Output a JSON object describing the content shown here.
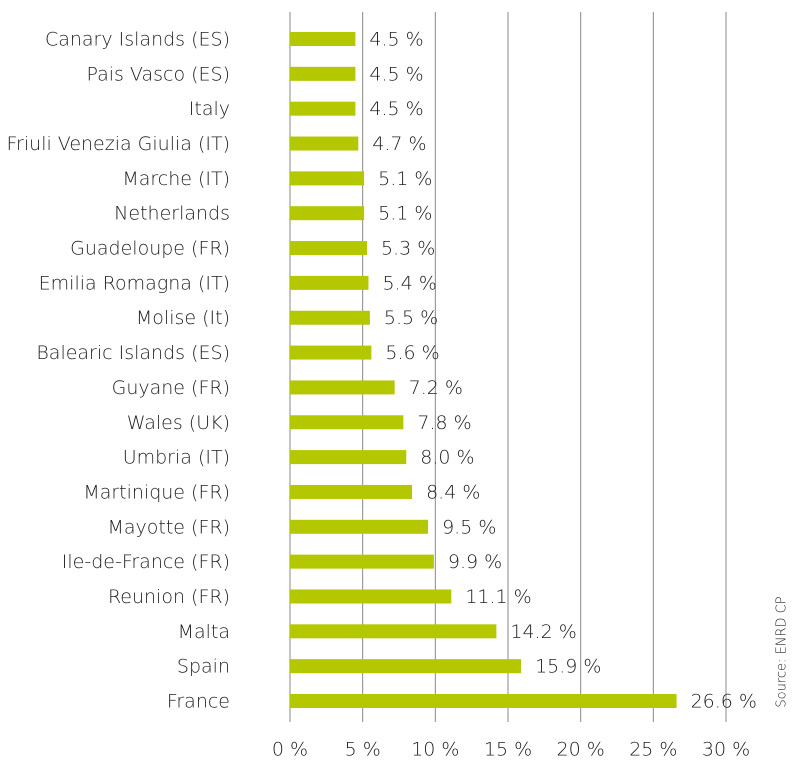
{
  "chart_data": {
    "type": "bar",
    "orientation": "horizontal",
    "categories": [
      "Canary Islands (ES)",
      "Pais Vasco (ES)",
      "Italy",
      "Friuli Venezia Giulia (IT)",
      "Marche (IT)",
      "Netherlands",
      "Guadeloupe (FR)",
      "Emilia Romagna (IT)",
      "Molise (It)",
      "Balearic Islands (ES)",
      "Guyane (FR)",
      "Wales (UK)",
      "Umbria (IT)",
      "Martinique (FR)",
      "Mayotte (FR)",
      "Ile-de-France (FR)",
      "Reunion (FR)",
      "Malta",
      "Spain",
      "France"
    ],
    "values": [
      4.5,
      4.5,
      4.5,
      4.7,
      5.1,
      5.1,
      5.3,
      5.4,
      5.5,
      5.6,
      7.2,
      7.8,
      8.0,
      8.4,
      9.5,
      9.9,
      11.1,
      14.2,
      15.9,
      26.6
    ],
    "value_labels": [
      "4.5 %",
      "4.5 %",
      "4.5 %",
      "4.7 %",
      "5.1 %",
      "5.1 %",
      "5.3 %",
      "5.4 %",
      "5.5 %",
      "5.6 %",
      "7.2 %",
      "7.8 %",
      "8.0 %",
      "8.4 %",
      "9.5 %",
      "9.9 %",
      "11.1 %",
      "14.2 %",
      "15.9 %",
      "26.6 %"
    ],
    "color": "#b3c800",
    "xlim": [
      0,
      30
    ],
    "xticks": [
      {
        "value": 0,
        "label": "0 %"
      },
      {
        "value": 5,
        "label": "5 %"
      },
      {
        "value": 10,
        "label": "10 %"
      },
      {
        "value": 15,
        "label": "15 %"
      },
      {
        "value": 20,
        "label": "20 %"
      },
      {
        "value": 25,
        "label": "25 %"
      },
      {
        "value": 30,
        "label": "30 %"
      }
    ],
    "grid": true,
    "source": "Source: ENRD CP"
  }
}
